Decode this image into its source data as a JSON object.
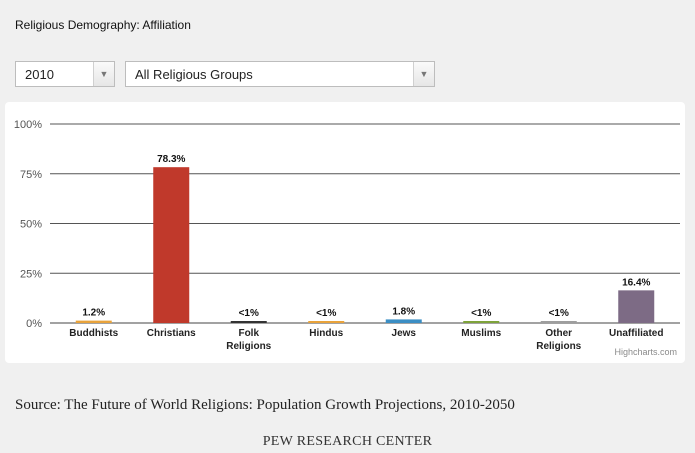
{
  "title": "Religious Demography: Affiliation",
  "filters": {
    "year": "2010",
    "group": "All Religious Groups"
  },
  "chart_data": {
    "type": "bar",
    "categories": [
      [
        "Buddhists"
      ],
      [
        "Christians"
      ],
      [
        "Folk",
        "Religions"
      ],
      [
        "Hindus"
      ],
      [
        "Jews"
      ],
      [
        "Muslims"
      ],
      [
        "Other",
        "Religions"
      ],
      [
        "Unaffiliated"
      ]
    ],
    "values": [
      1.2,
      78.3,
      0.4,
      0.4,
      1.8,
      0.4,
      0.4,
      16.4
    ],
    "data_labels": [
      "1.2%",
      "78.3%",
      "<1%",
      "<1%",
      "1.8%",
      "<1%",
      "<1%",
      "16.4%"
    ],
    "colors": [
      "#e9a33b",
      "#c0392b",
      "#333333",
      "#e9a33b",
      "#3b8ec4",
      "#7ea33a",
      "#9e9e9e",
      "#7d6b85"
    ],
    "ylim": [
      0,
      100
    ],
    "yticks": [
      "0%",
      "25%",
      "50%",
      "75%",
      "100%"
    ],
    "ytick_values": [
      0,
      25,
      50,
      75,
      100
    ],
    "grid": true
  },
  "credits": "Highcharts.com",
  "source": "Source: The Future of World Religions: Population Growth Projections, 2010-2050",
  "footer": "PEW RESEARCH CENTER"
}
